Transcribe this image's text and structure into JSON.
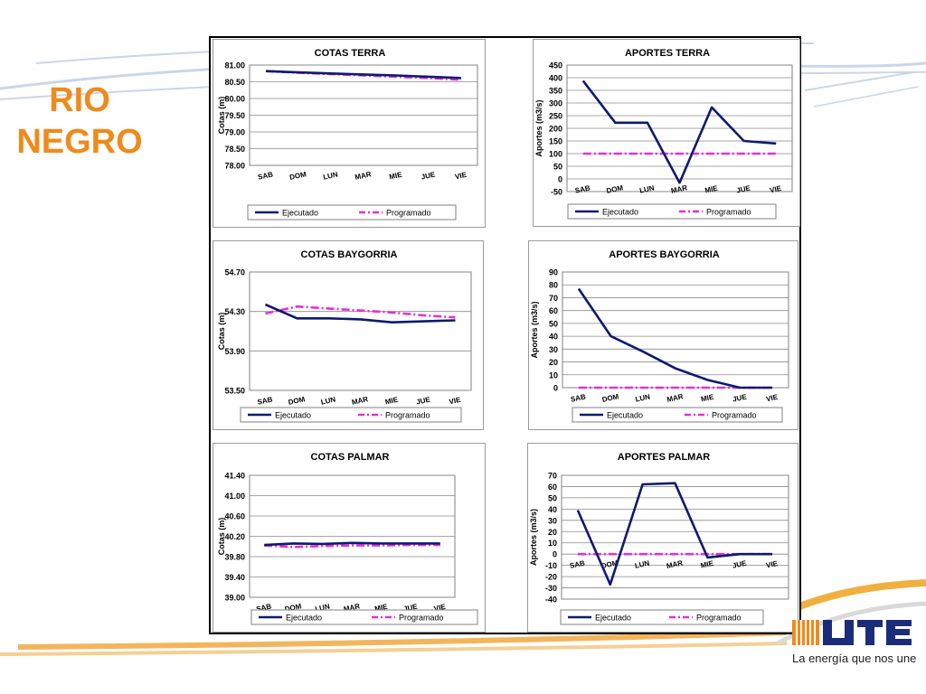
{
  "slide": {
    "title_line1": "RIO",
    "title_line2": "NEGRO"
  },
  "brand": {
    "logo_text": "UTE",
    "tagline": "La energía que nos une",
    "accent": "#f08a1c",
    "logo_blue": "#1b2d7a"
  },
  "colors": {
    "ejecutado": "#0d1a6e",
    "programado": "#e52fd9"
  },
  "chart_data": [
    {
      "id": "cotas-terra",
      "type": "line",
      "title": "COTAS TERRA",
      "ylabel": "Cotas (m)",
      "categories": [
        "SAB",
        "DOM",
        "LUN",
        "MAR",
        "MIE",
        "JUE",
        "VIE"
      ],
      "ylim": [
        78.0,
        81.0
      ],
      "yticks": [
        78.0,
        78.5,
        79.0,
        79.5,
        80.0,
        80.5,
        81.0
      ],
      "ytick_labels": [
        "78.00",
        "78.50",
        "79.00",
        "79.50",
        "80.00",
        "80.50",
        "81.00"
      ],
      "legend": "bottom",
      "series": [
        {
          "name": "Ejecutado",
          "values": [
            80.82,
            80.78,
            80.75,
            80.72,
            80.69,
            80.65,
            80.61
          ]
        },
        {
          "name": "Programado",
          "values": [
            80.82,
            80.77,
            80.73,
            80.69,
            80.65,
            80.61,
            80.56
          ]
        }
      ]
    },
    {
      "id": "aportes-terra",
      "type": "line",
      "title": "APORTES TERRA",
      "ylabel": "Aportes (m3/s)",
      "categories": [
        "SAB",
        "DOM",
        "LUN",
        "MAR",
        "MIE",
        "JUE",
        "VIE"
      ],
      "ylim": [
        -50,
        450
      ],
      "yticks": [
        -50,
        0,
        50,
        100,
        150,
        200,
        250,
        300,
        350,
        400,
        450
      ],
      "ytick_labels": [
        "-50",
        "0",
        "50",
        "100",
        "150",
        "200",
        "250",
        "300",
        "350",
        "400",
        "450"
      ],
      "legend": "bottom",
      "series": [
        {
          "name": "Ejecutado",
          "values": [
            388,
            222,
            222,
            -15,
            283,
            150,
            140
          ]
        },
        {
          "name": "Programado",
          "values": [
            100,
            100,
            100,
            100,
            100,
            100,
            100
          ]
        }
      ]
    },
    {
      "id": "cotas-baygorria",
      "type": "line",
      "title": "COTAS BAYGORRIA",
      "ylabel": "Cotas (m)",
      "categories": [
        "SAB",
        "DOM",
        "LUN",
        "MAR",
        "MIE",
        "JUE",
        "VIE"
      ],
      "ylim": [
        53.5,
        54.7
      ],
      "yticks": [
        53.5,
        53.9,
        54.3,
        54.7
      ],
      "ytick_labels": [
        "53.50",
        "53.90",
        "54.30",
        "54.70"
      ],
      "legend": "bottom",
      "series": [
        {
          "name": "Ejecutado",
          "values": [
            54.37,
            54.23,
            54.23,
            54.22,
            54.19,
            54.2,
            54.21
          ]
        },
        {
          "name": "Programado",
          "values": [
            54.28,
            54.35,
            54.33,
            54.31,
            54.29,
            54.26,
            54.24
          ]
        }
      ]
    },
    {
      "id": "aportes-baygorria",
      "type": "line",
      "title": "APORTES BAYGORRIA",
      "ylabel": "Aportes (m3/s)",
      "categories": [
        "SAB",
        "DOM",
        "LUN",
        "MAR",
        "MIE",
        "JUE",
        "VIE"
      ],
      "ylim": [
        0,
        90
      ],
      "yticks": [
        0,
        10,
        20,
        30,
        40,
        50,
        60,
        70,
        80,
        90
      ],
      "ytick_labels": [
        "0",
        "10",
        "20",
        "30",
        "40",
        "50",
        "60",
        "70",
        "80",
        "90"
      ],
      "legend": "bottom",
      "series": [
        {
          "name": "Ejecutado",
          "values": [
            77,
            40,
            28,
            15,
            6,
            0,
            0
          ]
        },
        {
          "name": "Programado",
          "values": [
            0,
            0,
            0,
            0,
            0,
            0,
            0
          ]
        }
      ]
    },
    {
      "id": "cotas-palmar",
      "type": "line",
      "title": "COTAS PALMAR",
      "ylabel": "Cotas (m)",
      "categories": [
        "SAB",
        "DOM",
        "LUN",
        "MAR",
        "MIE",
        "JUE",
        "VIE"
      ],
      "ylim": [
        39.0,
        41.4
      ],
      "yticks": [
        39.0,
        39.4,
        39.8,
        40.2,
        40.6,
        41.0,
        41.4
      ],
      "ytick_labels": [
        "39.00",
        "39.40",
        "39.80",
        "40.20",
        "40.60",
        "41.00",
        "41.40"
      ],
      "legend": "bottom",
      "series": [
        {
          "name": "Ejecutado",
          "values": [
            40.03,
            40.06,
            40.05,
            40.07,
            40.06,
            40.06,
            40.06
          ]
        },
        {
          "name": "Programado",
          "values": [
            40.02,
            39.99,
            40.01,
            40.02,
            40.02,
            40.03,
            40.03
          ]
        }
      ]
    },
    {
      "id": "aportes-palmar",
      "type": "line",
      "title": "APORTES PALMAR",
      "ylabel": "Aportes (m3/s)",
      "categories": [
        "SAB",
        "DOM",
        "LUN",
        "MAR",
        "MIE",
        "JUE",
        "VIE"
      ],
      "ylim": [
        -40,
        70
      ],
      "yticks": [
        -40,
        -30,
        -20,
        -10,
        0,
        10,
        20,
        30,
        40,
        50,
        60,
        70
      ],
      "ytick_labels": [
        "-40",
        "-30",
        "-20",
        "-10",
        "0",
        "10",
        "20",
        "30",
        "40",
        "50",
        "60",
        "70"
      ],
      "legend": "bottom",
      "series": [
        {
          "name": "Ejecutado",
          "values": [
            39,
            -27,
            62,
            63,
            -3,
            0,
            0
          ]
        },
        {
          "name": "Programado",
          "values": [
            0,
            0,
            0,
            0,
            0,
            0,
            0
          ]
        }
      ]
    }
  ]
}
